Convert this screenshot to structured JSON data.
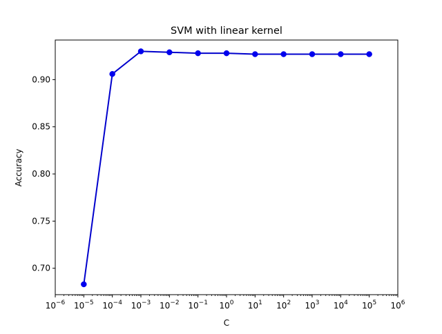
{
  "chart_data": {
    "type": "line",
    "title": "SVM with linear kernel",
    "xlabel": "C",
    "ylabel": "Accuracy",
    "x_scale": "log",
    "xlim": [
      1e-06,
      1000000.0
    ],
    "ylim": [
      0.672,
      0.942
    ],
    "grid": false,
    "x_tick_values": [
      1e-06,
      1e-05,
      0.0001,
      0.001,
      0.01,
      0.1,
      1,
      10,
      100,
      1000,
      10000,
      100000,
      1000000
    ],
    "x_tick_labels": [
      {
        "base": "10",
        "exp": "−6"
      },
      {
        "base": "10",
        "exp": "−5"
      },
      {
        "base": "10",
        "exp": "−4"
      },
      {
        "base": "10",
        "exp": "−3"
      },
      {
        "base": "10",
        "exp": "−2"
      },
      {
        "base": "10",
        "exp": "−1"
      },
      {
        "base": "10",
        "exp": "0"
      },
      {
        "base": "10",
        "exp": "1"
      },
      {
        "base": "10",
        "exp": "2"
      },
      {
        "base": "10",
        "exp": "3"
      },
      {
        "base": "10",
        "exp": "4"
      },
      {
        "base": "10",
        "exp": "5"
      },
      {
        "base": "10",
        "exp": "6"
      }
    ],
    "y_tick_values": [
      0.7,
      0.75,
      0.8,
      0.85,
      0.9
    ],
    "y_tick_labels": [
      "0.70",
      "0.75",
      "0.80",
      "0.85",
      "0.90"
    ],
    "series": [
      {
        "color": "#0000cc",
        "marker_color": "#0000ee",
        "x": [
          1e-05,
          0.0001,
          0.001,
          0.01,
          0.1,
          1,
          10,
          100,
          1000,
          10000,
          100000
        ],
        "y": [
          0.683,
          0.906,
          0.93,
          0.929,
          0.928,
          0.928,
          0.927,
          0.927,
          0.927,
          0.927,
          0.927
        ]
      }
    ]
  }
}
